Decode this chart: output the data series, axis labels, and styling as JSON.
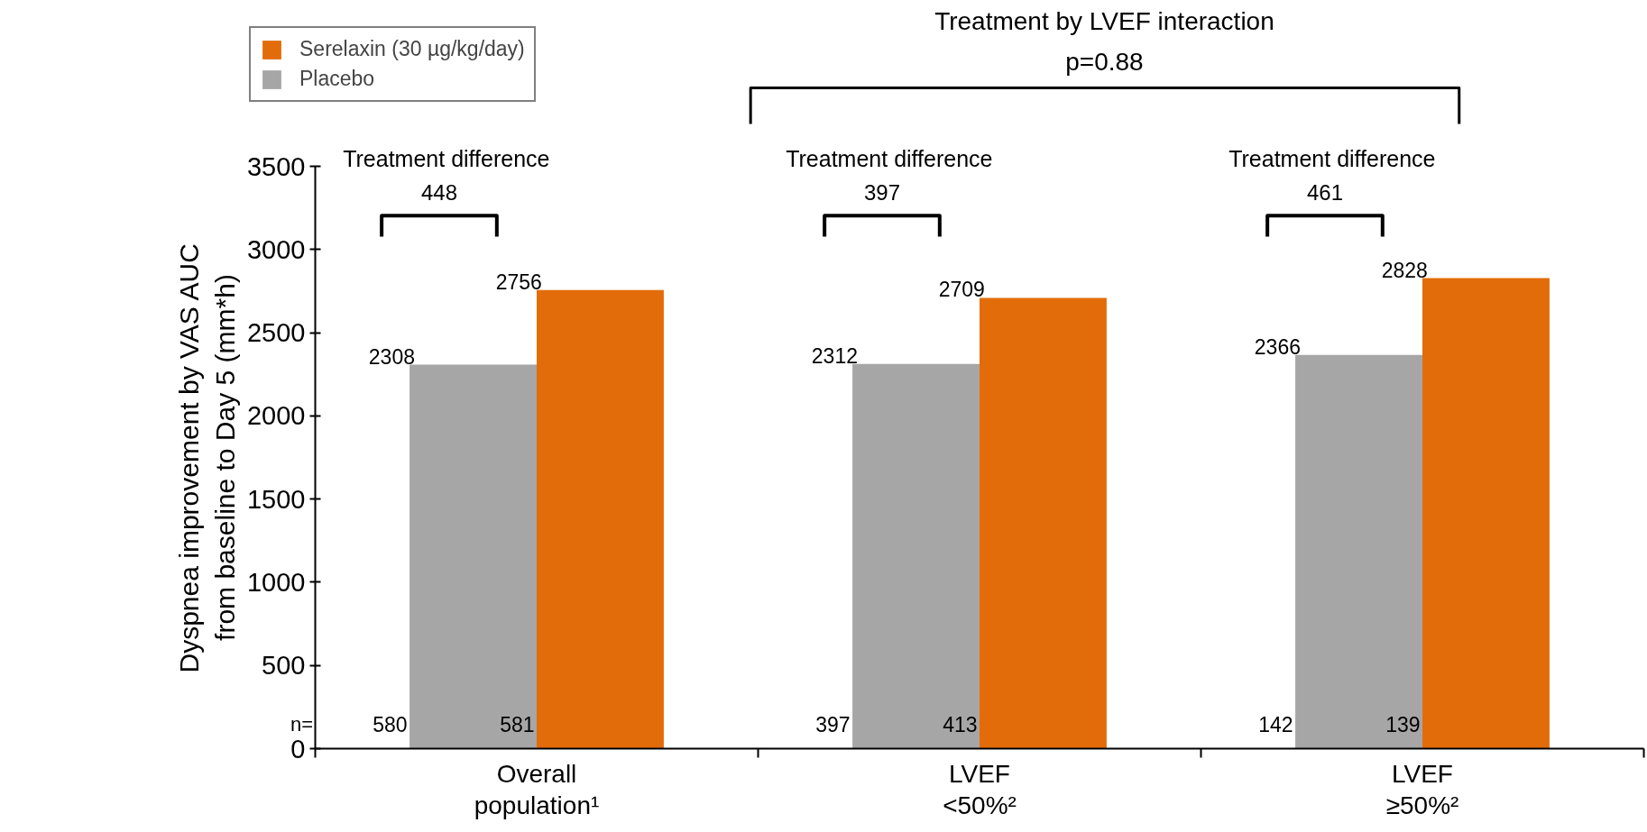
{
  "chart_data": {
    "type": "bar",
    "ylabel": "Dyspnea improvement by VAS AUC\nfrom baseline to Day 5 (mm*h)",
    "categories": [
      "Overall\npopulation¹",
      "LVEF\n<50%²",
      "LVEF\n≥50%²"
    ],
    "series": [
      {
        "name": "Placebo",
        "color": "#a6a6a6",
        "values": [
          2308,
          2312,
          2366
        ]
      },
      {
        "name": "Serelaxin (30 µg/kg/day)",
        "color": "#e36c0a",
        "values": [
          2756,
          2709,
          2828
        ]
      }
    ],
    "ylim": [
      0,
      3500
    ],
    "yticks": [
      0,
      500,
      1000,
      1500,
      2000,
      2500,
      3000,
      3500
    ],
    "data_labels": true,
    "grid": false,
    "legend": "top left",
    "annotations": [
      "Treatment by LVEF interaction",
      "p=0.88",
      "Treatment difference",
      "448",
      "Treatment difference",
      "397",
      "Treatment difference",
      "461",
      "n=",
      "580",
      "581",
      "397",
      "413",
      "142",
      "139"
    ]
  }
}
